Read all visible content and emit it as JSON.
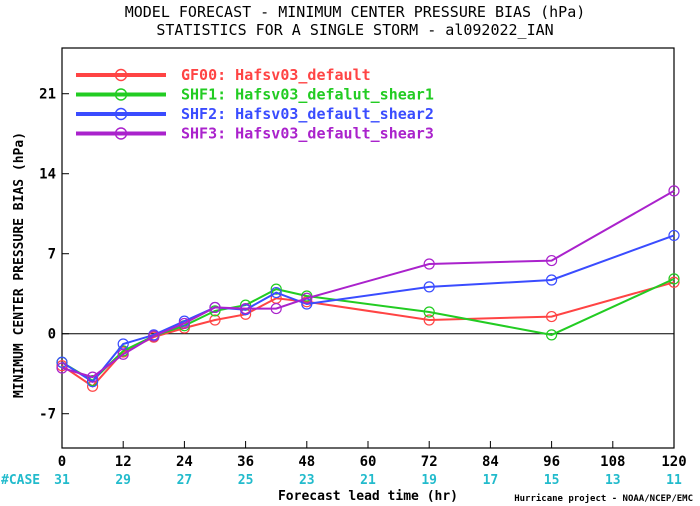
{
  "chart_data": {
    "type": "line",
    "title": "MODEL FORECAST - MINIMUM CENTER PRESSURE BIAS (hPa)",
    "subtitle": "STATISTICS FOR A SINGLE STORM - al092022_IAN",
    "xlabel": "Forecast lead time (hr)",
    "ylabel": "MINIMUM CENTER PRESSURE BIAS (hPa)",
    "xlim": [
      0,
      120
    ],
    "ylim": [
      -10,
      25
    ],
    "x_ticks": [
      0,
      12,
      24,
      36,
      48,
      60,
      72,
      84,
      96,
      108,
      120
    ],
    "y_ticks": [
      -7,
      0,
      7,
      14,
      21
    ],
    "grid": false,
    "legend_position": "top-left",
    "case_label": "#CASE",
    "case_counts": [
      31,
      29,
      27,
      25,
      23,
      21,
      19,
      17,
      15,
      13,
      11
    ],
    "credit": "Hurricane project - NOAA/NCEP/EMC",
    "series": [
      {
        "name": "GF00: Hafsv03_default",
        "color": "#ff4444",
        "x": [
          0,
          6,
          12,
          18,
          24,
          30,
          36,
          42,
          48,
          72,
          96,
          120
        ],
        "y": [
          -2.8,
          -4.6,
          -1.6,
          -0.3,
          0.5,
          1.2,
          1.7,
          3.1,
          2.8,
          1.2,
          1.5,
          4.5
        ]
      },
      {
        "name": "SHF1: Hafsv03_defalut_shear1",
        "color": "#22cc22",
        "x": [
          0,
          6,
          12,
          18,
          24,
          30,
          36,
          42,
          48,
          72,
          96,
          120
        ],
        "y": [
          -2.5,
          -4.1,
          -1.5,
          -0.2,
          0.7,
          2.0,
          2.5,
          3.9,
          3.3,
          1.9,
          -0.1,
          4.8
        ]
      },
      {
        "name": "SHF2: Hafsv03_default_shear2",
        "color": "#3a4cff",
        "x": [
          0,
          6,
          12,
          18,
          24,
          30,
          36,
          42,
          48,
          72,
          96,
          120
        ],
        "y": [
          -2.5,
          -4.2,
          -0.9,
          -0.1,
          1.1,
          2.3,
          2.1,
          3.6,
          2.6,
          4.1,
          4.7,
          8.6
        ]
      },
      {
        "name": "SHF3: Hafsv03_default_shear3",
        "color": "#aa22cc",
        "x": [
          0,
          6,
          12,
          18,
          24,
          30,
          36,
          42,
          48,
          72,
          96,
          120
        ],
        "y": [
          -3.0,
          -3.8,
          -1.8,
          -0.2,
          0.9,
          2.3,
          2.2,
          2.2,
          3.1,
          6.1,
          6.4,
          12.5
        ]
      }
    ]
  },
  "colors": {
    "case_counts": "#22bbcc",
    "axis": "#000000",
    "zero_line": "#000000"
  }
}
